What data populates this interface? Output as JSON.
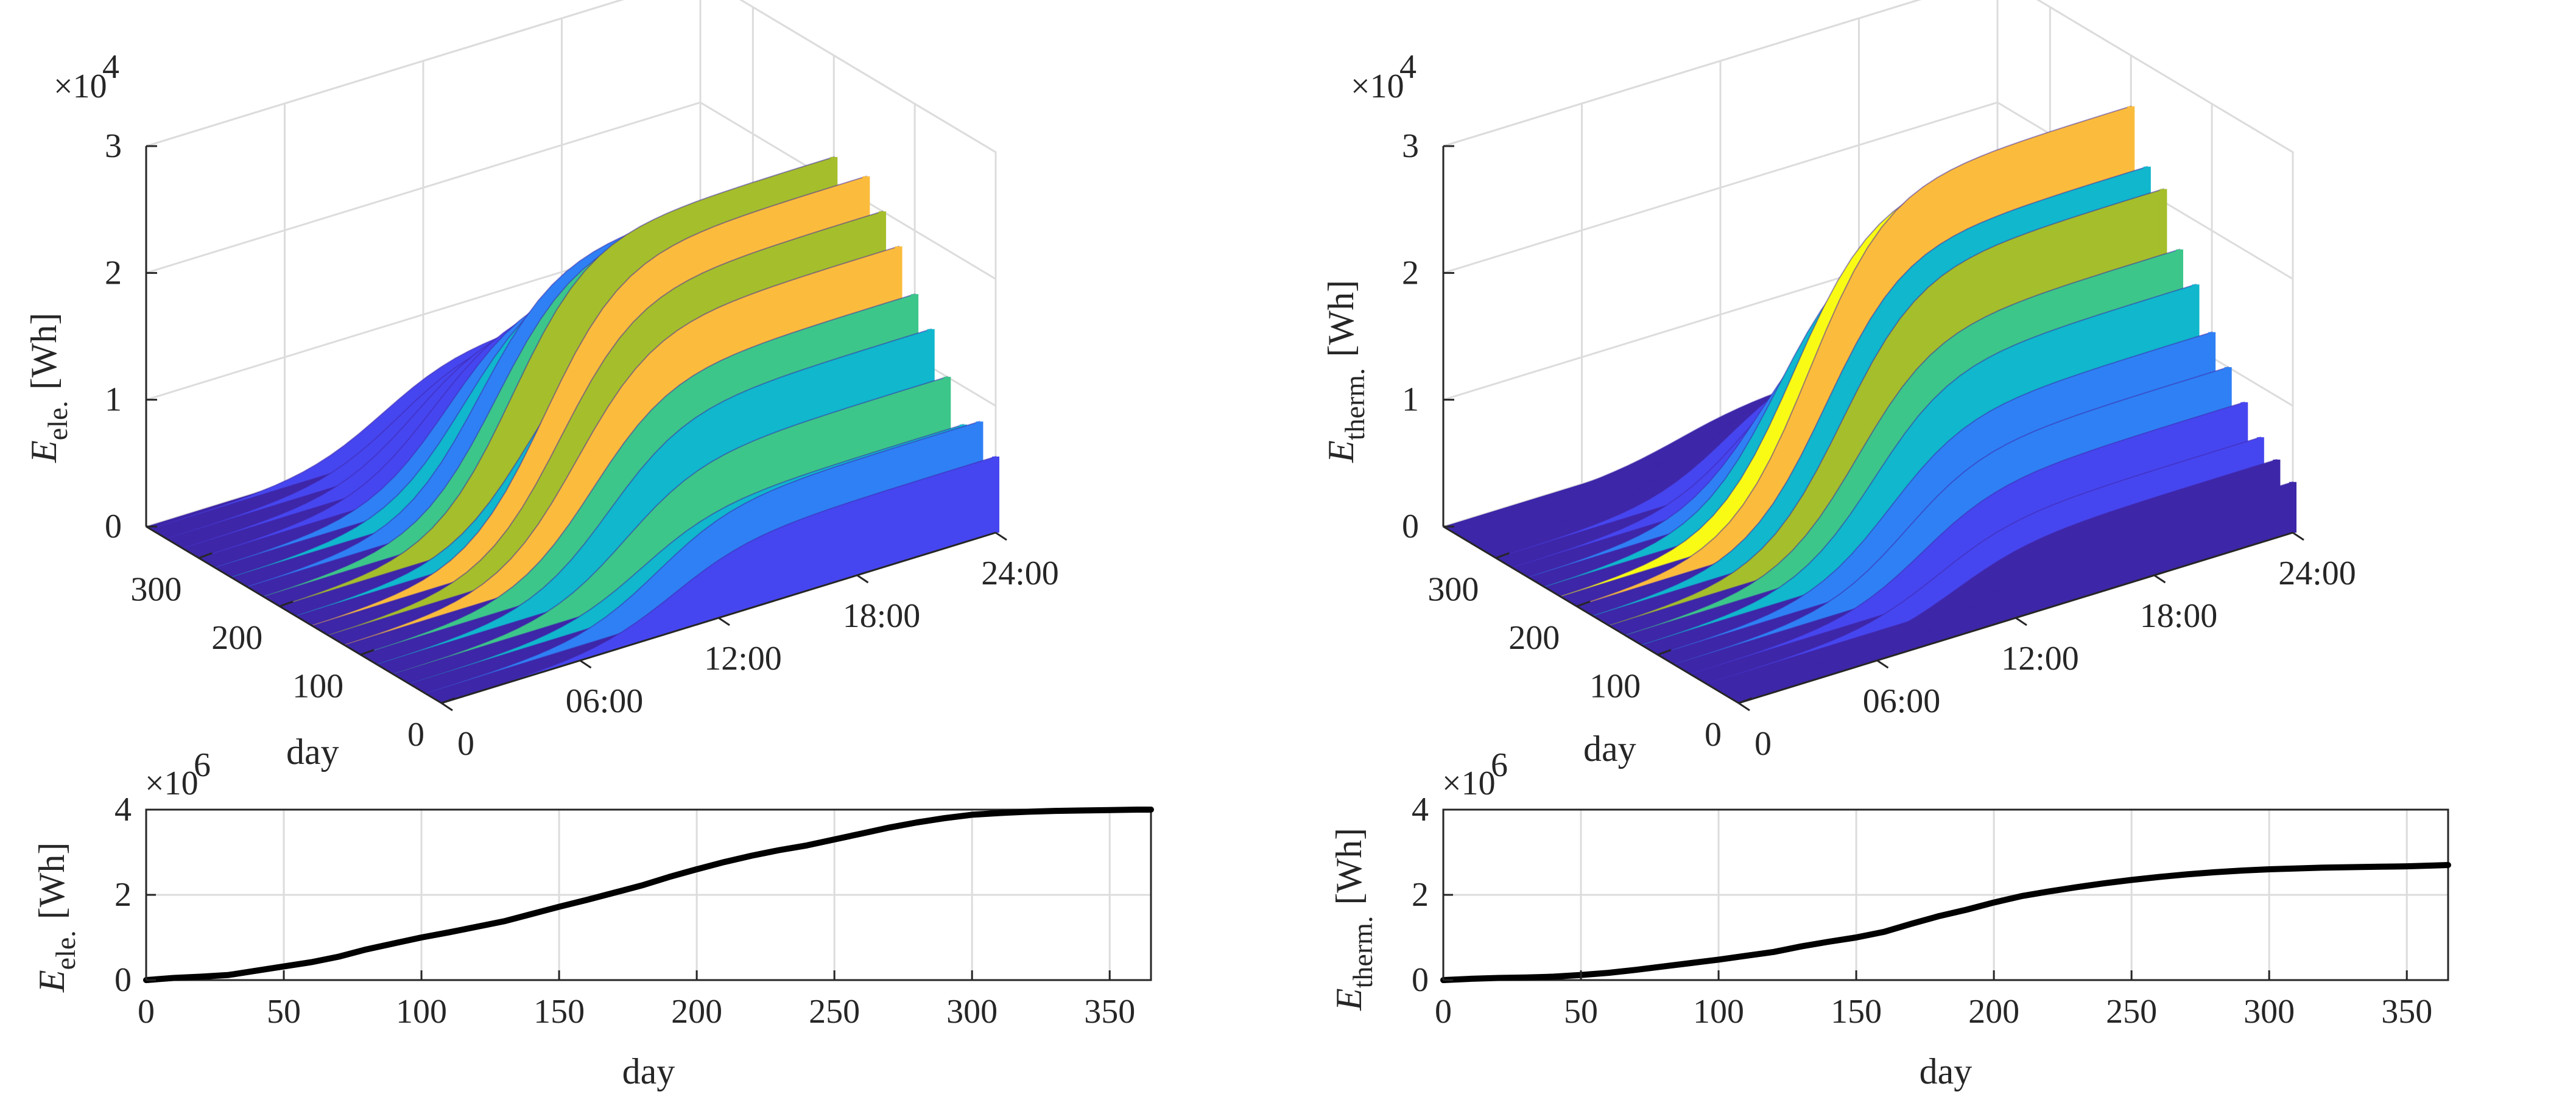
{
  "chart_data": [
    {
      "type": "surface",
      "id": "ele-3d",
      "zlabel_main": "E",
      "zlabel_sub": "ele.",
      "zlabel_unit": "[Wh]",
      "exponent_base": "×10",
      "exponent_power": "4",
      "z_ticks": [
        "0",
        "1",
        "2",
        "3"
      ],
      "z_range": [
        0,
        3
      ],
      "day_ticks": [
        "0",
        "100",
        "200",
        "300"
      ],
      "day_label": "day",
      "time_ticks": [
        "0",
        "06:00",
        "12:00",
        "18:00",
        "24:00"
      ],
      "colormap": [
        "#3e26a8",
        "#4646f0",
        "#2f80f5",
        "#10b7cd",
        "#3cc68a",
        "#a5be2b",
        "#fbbc3d",
        "#f9fb15"
      ],
      "ridge_days": [
        0,
        20,
        40,
        60,
        80,
        100,
        120,
        140,
        160,
        180,
        200,
        220,
        240,
        260,
        280,
        300,
        320,
        340,
        360
      ],
      "ridge_peaks_x1e4": [
        0.6,
        0.8,
        0.7,
        1.0,
        1.3,
        1.5,
        1.8,
        2.0,
        2.2,
        1.6,
        2.2,
        2.0,
        1.9,
        1.6,
        1.4,
        1.2,
        1.0,
        0.8,
        0.7
      ],
      "ridge_colors": [
        "#4646f0",
        "#2f80f5",
        "#10b7cd",
        "#3cc68a",
        "#10b7cd",
        "#3cc68a",
        "#fbbc3d",
        "#a5be2b",
        "#fbbc3d",
        "#10b7cd",
        "#a5be2b",
        "#3cc68a",
        "#2f80f5",
        "#10b7cd",
        "#2f80f5",
        "#4646f0",
        "#4646f0",
        "#4646f0",
        "#4646f0"
      ]
    },
    {
      "type": "surface",
      "id": "therm-3d",
      "zlabel_main": "E",
      "zlabel_sub": "therm.",
      "zlabel_unit": "[Wh]",
      "exponent_base": "×10",
      "exponent_power": "4",
      "z_ticks": [
        "0",
        "1",
        "2",
        "3"
      ],
      "z_range": [
        0,
        3
      ],
      "day_ticks": [
        "0",
        "100",
        "200",
        "300"
      ],
      "day_label": "day",
      "time_ticks": [
        "0",
        "06:00",
        "12:00",
        "18:00",
        "24:00"
      ],
      "colormap": [
        "#3e26a8",
        "#4646f0",
        "#2f80f5",
        "#10b7cd",
        "#3cc68a",
        "#a5be2b",
        "#fbbc3d",
        "#f9fb15"
      ],
      "ridge_days": [
        0,
        20,
        40,
        60,
        80,
        100,
        120,
        140,
        160,
        180,
        200,
        220,
        240,
        260,
        280,
        300,
        320,
        340,
        360
      ],
      "ridge_peaks_x1e4": [
        0.4,
        0.5,
        0.6,
        0.8,
        1.0,
        1.2,
        1.5,
        1.7,
        2.1,
        2.2,
        2.6,
        2.4,
        2.0,
        1.5,
        1.0,
        0.8,
        0.6,
        0.4,
        0.3
      ],
      "ridge_colors": [
        "#3e26a8",
        "#3e26a8",
        "#4646f0",
        "#4646f0",
        "#2f80f5",
        "#2f80f5",
        "#10b7cd",
        "#3cc68a",
        "#a5be2b",
        "#10b7cd",
        "#fbbc3d",
        "#f9fb15",
        "#10b7cd",
        "#2f80f5",
        "#4646f0",
        "#4646f0",
        "#3e26a8",
        "#3e26a8",
        "#3e26a8"
      ]
    },
    {
      "type": "line",
      "id": "ele-cum",
      "ylabel_main": "E",
      "ylabel_sub": "ele.",
      "ylabel_unit": "[Wh]",
      "exponent_base": "×10",
      "exponent_power": "6",
      "xlabel": "day",
      "x_ticks": [
        "0",
        "50",
        "100",
        "150",
        "200",
        "250",
        "300",
        "350"
      ],
      "y_ticks": [
        "0",
        "2",
        "4"
      ],
      "xlim": [
        0,
        365
      ],
      "ylim": [
        0,
        4
      ],
      "x": [
        0,
        10,
        20,
        30,
        40,
        50,
        60,
        70,
        80,
        90,
        100,
        110,
        120,
        130,
        140,
        150,
        160,
        170,
        180,
        190,
        200,
        210,
        220,
        230,
        240,
        250,
        260,
        270,
        280,
        290,
        300,
        310,
        320,
        330,
        340,
        350,
        360,
        365
      ],
      "y": [
        0,
        0.05,
        0.08,
        0.12,
        0.22,
        0.32,
        0.42,
        0.55,
        0.72,
        0.86,
        1.0,
        1.12,
        1.25,
        1.38,
        1.55,
        1.72,
        1.88,
        2.05,
        2.22,
        2.42,
        2.6,
        2.77,
        2.92,
        3.05,
        3.16,
        3.3,
        3.44,
        3.58,
        3.7,
        3.8,
        3.88,
        3.92,
        3.95,
        3.97,
        3.98,
        3.99,
        4.0,
        4.0
      ]
    },
    {
      "type": "line",
      "id": "therm-cum",
      "ylabel_main": "E",
      "ylabel_sub": "therm.",
      "ylabel_unit": "[Wh]",
      "exponent_base": "×10",
      "exponent_power": "6",
      "xlabel": "day",
      "x_ticks": [
        "0",
        "50",
        "100",
        "150",
        "200",
        "250",
        "300",
        "350"
      ],
      "y_ticks": [
        "0",
        "2",
        "4"
      ],
      "xlim": [
        0,
        365
      ],
      "ylim": [
        0,
        4
      ],
      "x": [
        0,
        10,
        20,
        30,
        40,
        50,
        60,
        70,
        80,
        90,
        100,
        110,
        120,
        130,
        140,
        150,
        160,
        170,
        180,
        190,
        200,
        210,
        220,
        230,
        240,
        250,
        260,
        270,
        280,
        290,
        300,
        310,
        320,
        330,
        340,
        350,
        360,
        365
      ],
      "y": [
        0,
        0.03,
        0.05,
        0.06,
        0.08,
        0.12,
        0.17,
        0.24,
        0.32,
        0.4,
        0.48,
        0.57,
        0.66,
        0.79,
        0.9,
        1.0,
        1.13,
        1.32,
        1.5,
        1.65,
        1.82,
        1.97,
        2.08,
        2.18,
        2.27,
        2.35,
        2.42,
        2.48,
        2.53,
        2.57,
        2.6,
        2.62,
        2.64,
        2.65,
        2.66,
        2.67,
        2.69,
        2.7
      ]
    }
  ]
}
